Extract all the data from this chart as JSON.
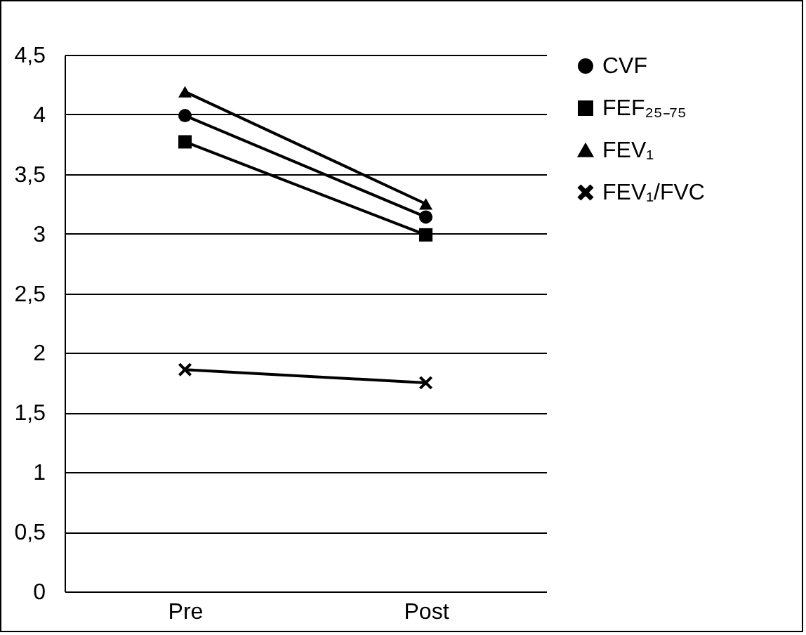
{
  "chart_data": {
    "type": "line",
    "categories": [
      "Pre",
      "Post"
    ],
    "series": [
      {
        "name": "CVF",
        "color": "#000000",
        "marker": "circle",
        "values": [
          3.99,
          3.14
        ]
      },
      {
        "name": "FEF₂₅₋₇₅",
        "color": "#000000",
        "marker": "square",
        "values": [
          3.77,
          2.99
        ]
      },
      {
        "name": "FEV₁",
        "color": "#000000",
        "marker": "triangle",
        "values": [
          4.19,
          3.25
        ]
      },
      {
        "name": "FEV₁/FVC",
        "color": "#000000",
        "marker": "cross",
        "values": [
          1.86,
          1.75
        ]
      }
    ],
    "ylim": [
      0,
      4.5
    ],
    "yticks": [
      {
        "value": 0,
        "label": "0"
      },
      {
        "value": 0.5,
        "label": "0,5"
      },
      {
        "value": 1,
        "label": "1"
      },
      {
        "value": 1.5,
        "label": "1,5"
      },
      {
        "value": 2,
        "label": "2"
      },
      {
        "value": 2.5,
        "label": "2,5"
      },
      {
        "value": 3,
        "label": "3"
      },
      {
        "value": 3.5,
        "label": "3,5"
      },
      {
        "value": 4,
        "label": "4"
      },
      {
        "value": 4.5,
        "label": "4,5"
      }
    ],
    "grid": "y",
    "legend": "right"
  }
}
